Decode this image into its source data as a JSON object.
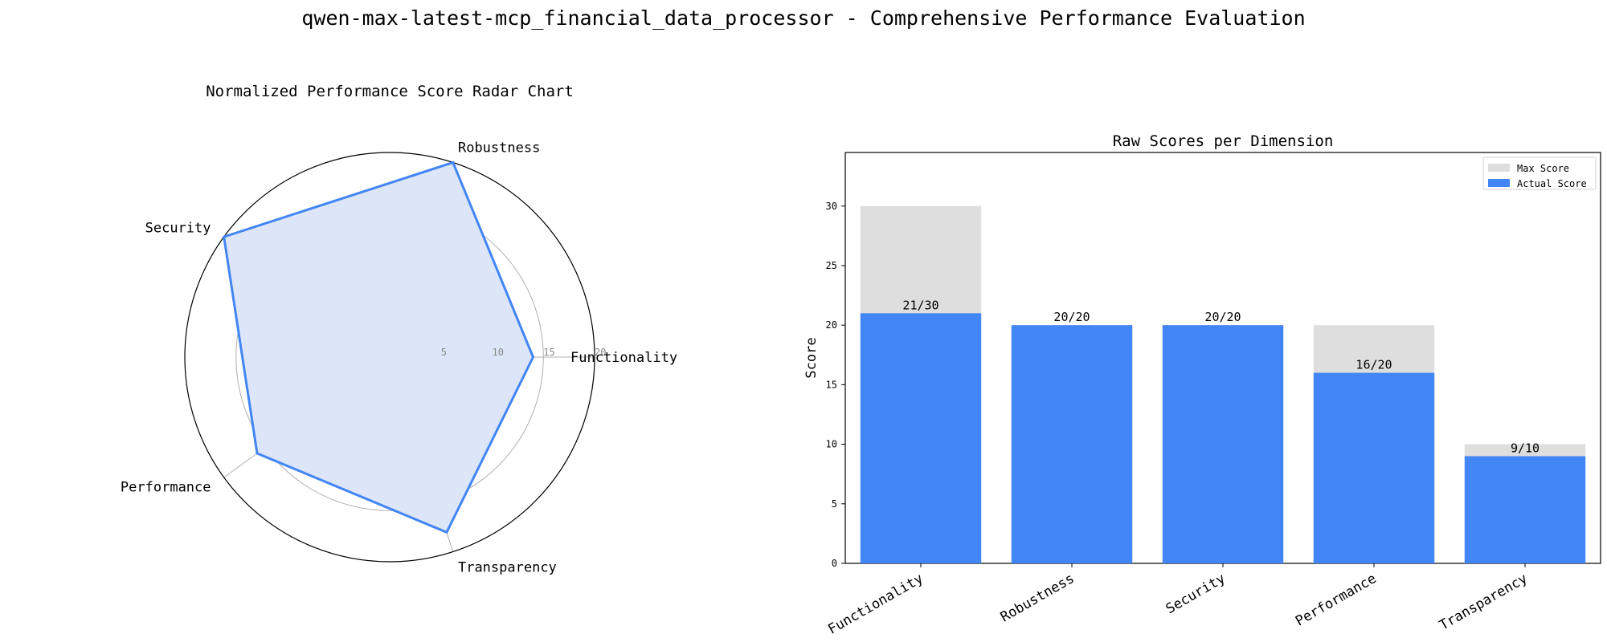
{
  "suptitle": "qwen-max-latest-mcp_financial_data_processor - Comprehensive Performance Evaluation",
  "colors": {
    "actual": "#4285f4",
    "max": "#dedede",
    "radar_line": "#4285f4",
    "radar_fill": "#dce6f8",
    "grid": "#b0b0b0"
  },
  "chart_data": [
    {
      "type": "radar",
      "title": "Normalized Performance Score Radar Chart",
      "axes": [
        "Functionality",
        "Robustness",
        "Security",
        "Performance",
        "Transparency"
      ],
      "values": [
        14,
        20,
        20,
        16,
        18
      ],
      "radial_ticks": [
        5,
        10,
        15,
        20
      ],
      "rlim": [
        0,
        20
      ],
      "grid": true
    },
    {
      "type": "bar",
      "title": "Raw Scores per Dimension",
      "ylabel": "Score",
      "xlabel": "",
      "categories": [
        "Functionality",
        "Robustness",
        "Security",
        "Performance",
        "Transparency"
      ],
      "series": [
        {
          "name": "Max Score",
          "values": [
            30,
            20,
            20,
            20,
            10
          ]
        },
        {
          "name": "Actual Score",
          "values": [
            21,
            20,
            20,
            16,
            9
          ]
        }
      ],
      "data_labels": [
        "21/30",
        "20/20",
        "20/20",
        "16/20",
        "9/10"
      ],
      "yticks": [
        0,
        5,
        10,
        15,
        20,
        25,
        30
      ],
      "ylim": [
        0,
        34.5
      ],
      "legend": "top-right"
    }
  ]
}
